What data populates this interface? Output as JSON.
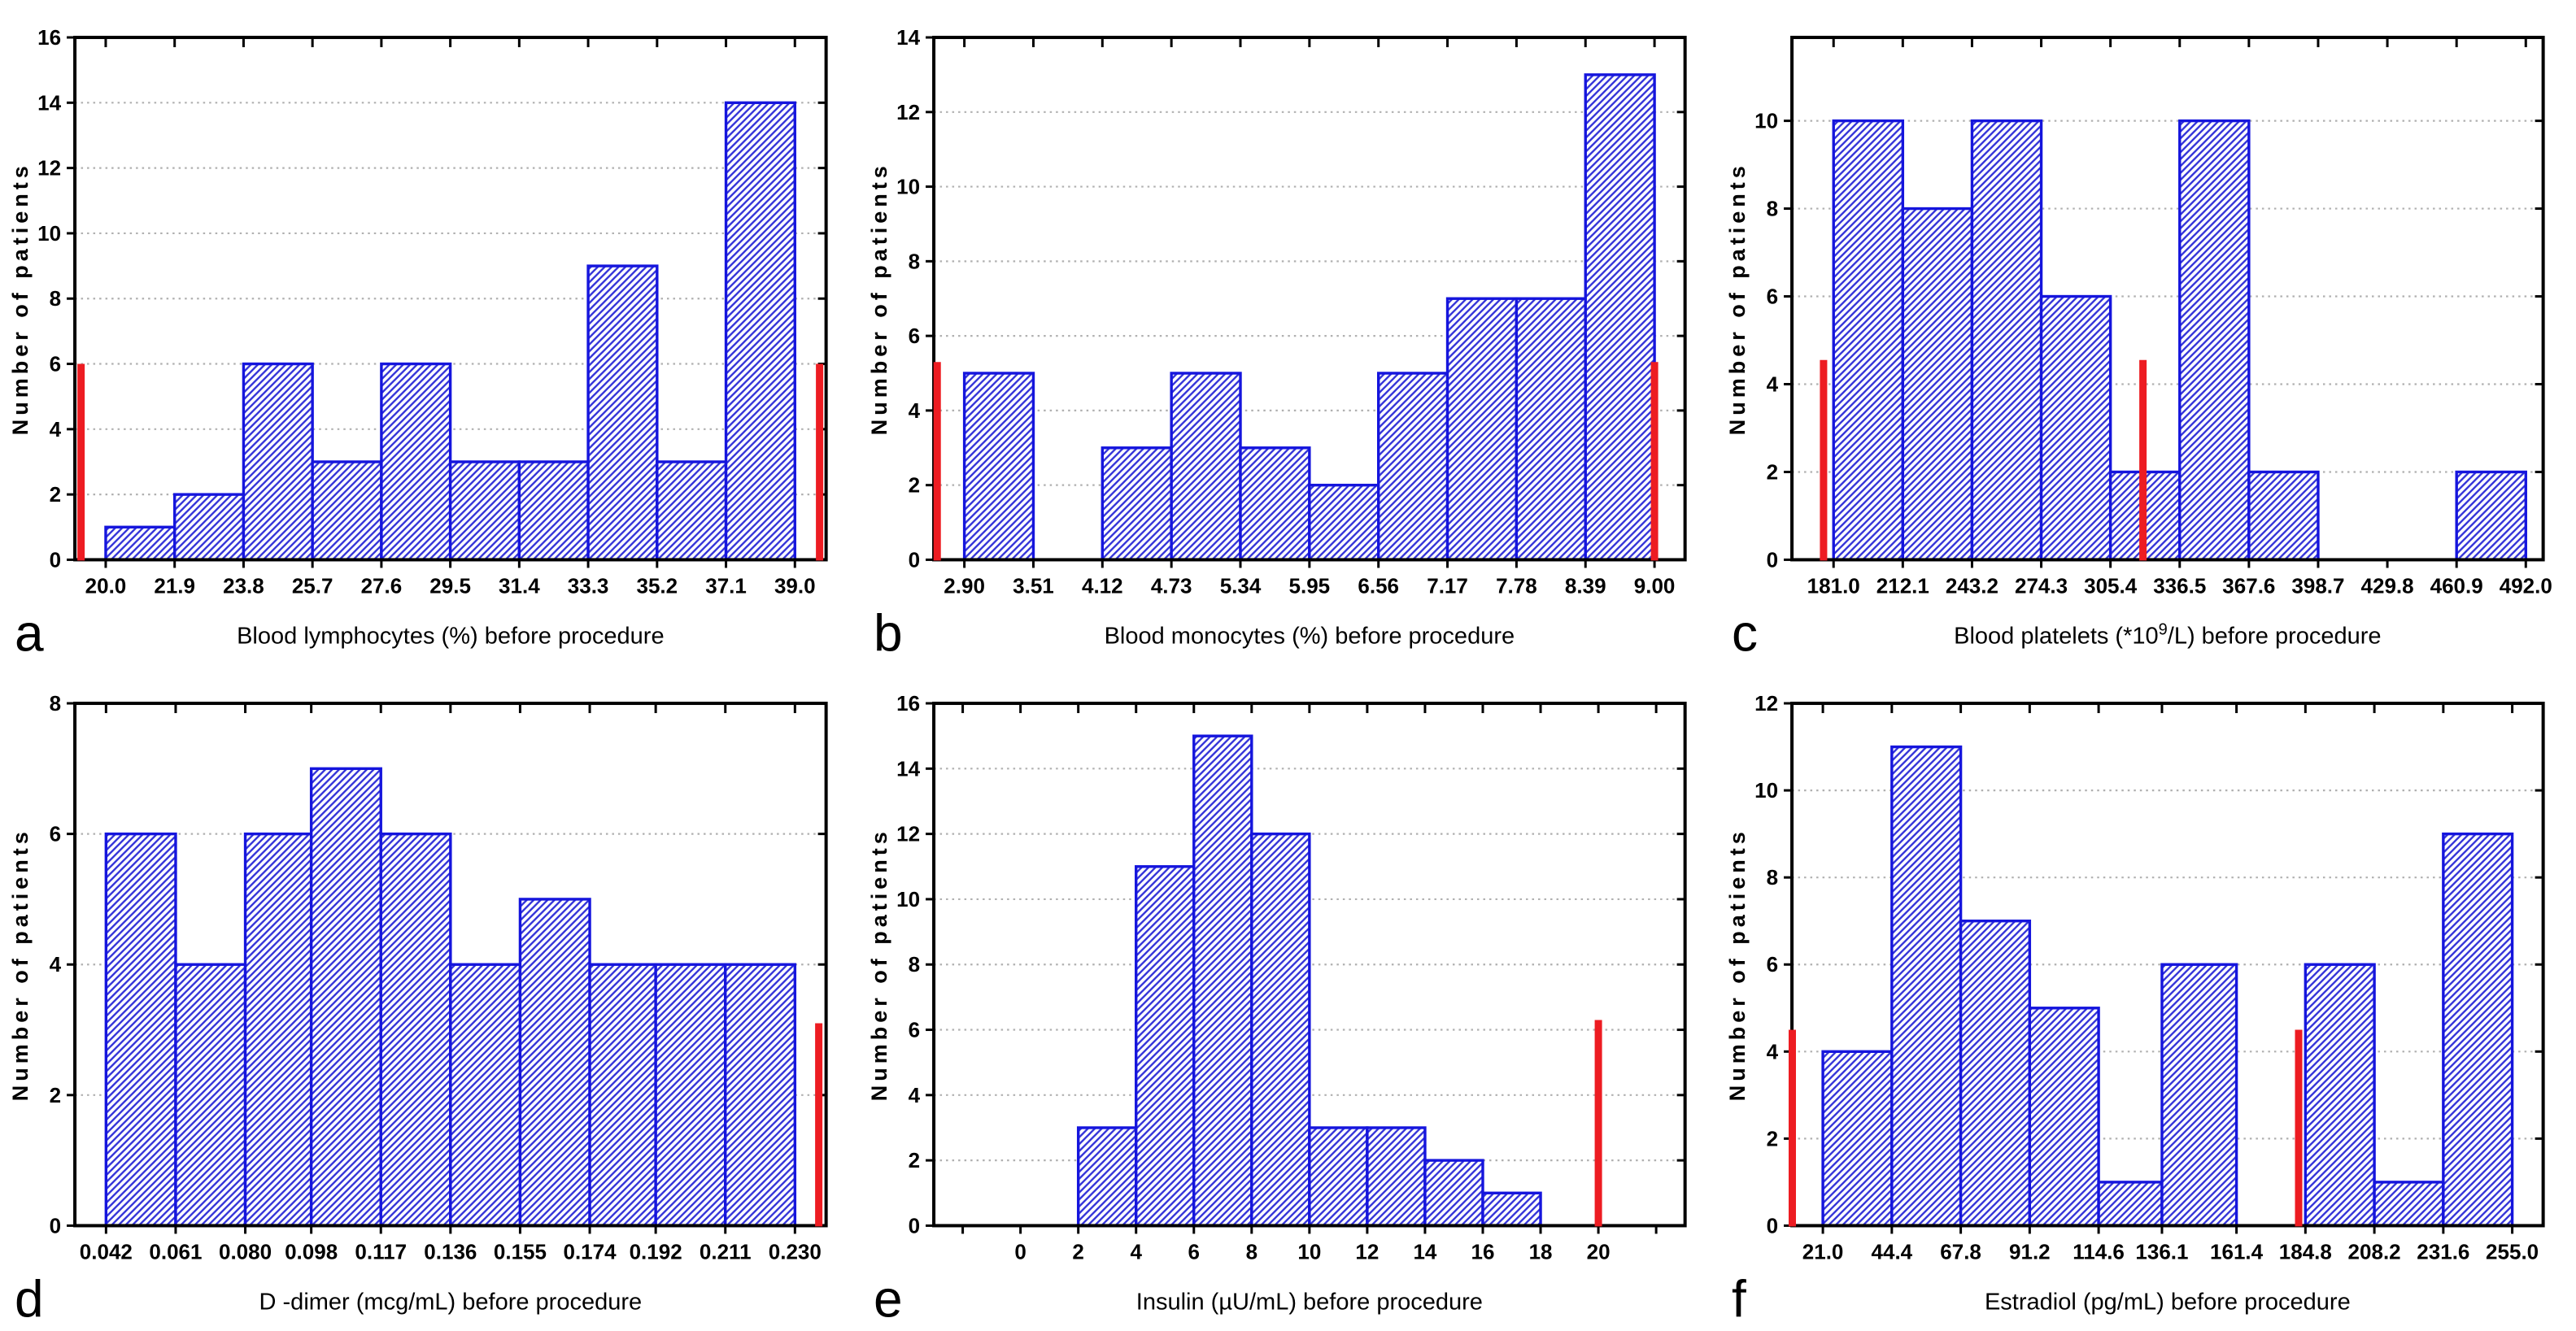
{
  "figure": {
    "ylabel": "Number of patients",
    "colors": {
      "bar_border": "#1515dd",
      "bar_hatch": "#3232d8",
      "refline": "#ed1c22",
      "frame": "#000000",
      "grid": "#b0b0b0",
      "text": "#000000",
      "background": "#ffffff"
    }
  },
  "chart_data": [
    {
      "type": "bar",
      "panel_label": "a",
      "title_pre": "Blood lymphocytes (%) before procedure",
      "title_sup": "",
      "title_post": "",
      "ylabel": "Number of patients",
      "xmin": 19.15,
      "xmax": 39.86,
      "ymax": 16,
      "yticks": [
        0,
        2,
        4,
        6,
        8,
        10,
        12,
        14,
        16
      ],
      "xticks": [
        20.0,
        21.9,
        23.8,
        25.7,
        27.6,
        29.5,
        31.4,
        33.3,
        35.2,
        37.1,
        39.0
      ],
      "xtick_labels": [
        "20.0",
        "21.9",
        "23.8",
        "25.7",
        "27.6",
        "29.5",
        "31.4",
        "33.3",
        "35.2",
        "37.1",
        "39.0"
      ],
      "bins": [
        [
          20.0,
          21.9,
          1
        ],
        [
          21.9,
          23.8,
          2
        ],
        [
          23.8,
          25.7,
          6
        ],
        [
          25.7,
          27.6,
          3
        ],
        [
          27.6,
          29.5,
          6
        ],
        [
          29.5,
          31.4,
          3
        ],
        [
          31.4,
          33.3,
          3
        ],
        [
          33.3,
          35.2,
          9
        ],
        [
          35.2,
          37.1,
          3
        ],
        [
          37.1,
          39.0,
          14
        ]
      ],
      "reflines": [
        {
          "x": 19.32,
          "h": 6
        },
        {
          "x": 39.68,
          "h": 6
        }
      ]
    },
    {
      "type": "bar",
      "panel_label": "b",
      "title_pre": "Blood monocytes (%) before procedure",
      "title_sup": "",
      "title_post": "",
      "ylabel": "Number of patients",
      "xmin": 2.63,
      "xmax": 9.27,
      "ymax": 14,
      "yticks": [
        0,
        2,
        4,
        6,
        8,
        10,
        12,
        14
      ],
      "xticks": [
        2.9,
        3.51,
        4.12,
        4.73,
        5.34,
        5.95,
        6.56,
        7.17,
        7.78,
        8.39,
        9.0
      ],
      "xtick_labels": [
        "2.90",
        "3.51",
        "4.12",
        "4.73",
        "5.34",
        "5.95",
        "6.56",
        "7.17",
        "7.78",
        "8.39",
        "9.00"
      ],
      "bins": [
        [
          2.9,
          3.51,
          5
        ],
        [
          3.51,
          4.12,
          0
        ],
        [
          4.12,
          4.73,
          3
        ],
        [
          4.73,
          5.34,
          5
        ],
        [
          5.34,
          5.95,
          3
        ],
        [
          5.95,
          6.56,
          2
        ],
        [
          6.56,
          7.17,
          5
        ],
        [
          7.17,
          7.78,
          7
        ],
        [
          7.78,
          8.39,
          7
        ],
        [
          8.39,
          9.0,
          13
        ]
      ],
      "reflines": [
        {
          "x": 2.66,
          "h": 5.3
        },
        {
          "x": 9.0,
          "h": 5.3
        }
      ]
    },
    {
      "type": "bar",
      "panel_label": "c",
      "title_pre": "Blood platelets (*10",
      "title_sup": "9",
      "title_post": "/L) before procedure",
      "ylabel": "Number of patients",
      "xmin": 162.3,
      "xmax": 499.8,
      "ymax": 11.9,
      "yticks": [
        0,
        2,
        4,
        6,
        8,
        10
      ],
      "xticks": [
        181.0,
        212.1,
        243.2,
        274.3,
        305.4,
        336.5,
        367.6,
        398.7,
        429.8,
        460.9,
        492.0
      ],
      "xtick_labels": [
        "181.0",
        "212.1",
        "243.2",
        "274.3",
        "305.4",
        "336.5",
        "367.6",
        "398.7",
        "429.8",
        "460.9",
        "492.0"
      ],
      "bins": [
        [
          181.0,
          212.1,
          10
        ],
        [
          212.1,
          243.2,
          8
        ],
        [
          243.2,
          274.3,
          10
        ],
        [
          274.3,
          305.4,
          6
        ],
        [
          305.4,
          336.5,
          2
        ],
        [
          336.5,
          367.6,
          10
        ],
        [
          367.6,
          398.7,
          2
        ],
        [
          398.7,
          429.8,
          0
        ],
        [
          429.8,
          460.9,
          0
        ],
        [
          460.9,
          492.0,
          2
        ]
      ],
      "reflines": [
        {
          "x": 176.5,
          "h": 4.55
        },
        {
          "x": 320,
          "h": 4.55
        }
      ]
    },
    {
      "type": "bar",
      "panel_label": "d",
      "title_pre": "D -dimer (mcg/mL) before procedure",
      "title_sup": "",
      "title_post": "",
      "ylabel": "Number of patients",
      "xmin": 0.0335,
      "xmax": 0.2385,
      "ymax": 8,
      "yticks": [
        0,
        2,
        4,
        6,
        8
      ],
      "xticks": [
        0.042,
        0.061,
        0.08,
        0.098,
        0.117,
        0.136,
        0.155,
        0.174,
        0.192,
        0.211,
        0.23
      ],
      "xtick_labels": [
        "0.042",
        "0.061",
        "0.080",
        "0.098",
        "0.117",
        "0.136",
        "0.155",
        "0.174",
        "0.192",
        "0.211",
        "0.230"
      ],
      "bins": [
        [
          0.042,
          0.061,
          6
        ],
        [
          0.061,
          0.08,
          4
        ],
        [
          0.08,
          0.098,
          6
        ],
        [
          0.098,
          0.117,
          7
        ],
        [
          0.117,
          0.136,
          6
        ],
        [
          0.136,
          0.155,
          4
        ],
        [
          0.155,
          0.174,
          5
        ],
        [
          0.174,
          0.192,
          4
        ],
        [
          0.192,
          0.211,
          4
        ],
        [
          0.211,
          0.23,
          4
        ]
      ],
      "reflines": [
        {
          "x": 0.2365,
          "h": 3.1
        }
      ]
    },
    {
      "type": "bar",
      "panel_label": "e",
      "title_pre": "Insulin (µU/mL) before procedure",
      "title_sup": "",
      "title_post": "",
      "ylabel": "Number of patients",
      "xmin": -3,
      "xmax": 23,
      "ymax": 16,
      "yticks": [
        0,
        2,
        4,
        6,
        8,
        10,
        12,
        14,
        16
      ],
      "xticks": [
        -2,
        0,
        2,
        4,
        6,
        8,
        10,
        12,
        14,
        16,
        18,
        20,
        22
      ],
      "xtick_labels": [
        "",
        "0",
        "2",
        "4",
        "6",
        "8",
        "10",
        "12",
        "14",
        "16",
        "18",
        "20",
        ""
      ],
      "bins": [
        [
          2,
          4,
          3
        ],
        [
          4,
          6,
          11
        ],
        [
          6,
          8,
          15
        ],
        [
          8,
          10,
          12
        ],
        [
          10,
          12,
          3
        ],
        [
          12,
          14,
          3
        ],
        [
          14,
          16,
          2
        ],
        [
          16,
          18,
          1
        ]
      ],
      "reflines": [
        {
          "x": 20,
          "h": 6.3
        }
      ]
    },
    {
      "type": "bar",
      "panel_label": "f",
      "title_pre": "Estradiol (pg/mL) before procedure",
      "title_sup": "",
      "title_post": "",
      "ylabel": "Number of patients",
      "xmin": 10.5,
      "xmax": 265.5,
      "ymax": 12,
      "yticks": [
        0,
        2,
        4,
        6,
        8,
        10,
        12
      ],
      "xticks": [
        21.0,
        44.4,
        67.8,
        91.2,
        114.6,
        136.1,
        161.4,
        184.8,
        208.2,
        231.6,
        255.0
      ],
      "xtick_labels": [
        "21.0",
        "44.4",
        "67.8",
        "91.2",
        "114.6",
        "136.1",
        "161.4",
        "184.8",
        "208.2",
        "231.6",
        "255.0"
      ],
      "bins": [
        [
          21.0,
          44.4,
          4
        ],
        [
          44.4,
          67.8,
          11
        ],
        [
          67.8,
          91.2,
          7
        ],
        [
          91.2,
          114.6,
          5
        ],
        [
          114.6,
          136.1,
          1
        ],
        [
          136.1,
          161.4,
          6
        ],
        [
          161.4,
          184.8,
          0
        ],
        [
          184.8,
          208.2,
          6
        ],
        [
          208.2,
          231.6,
          1
        ],
        [
          231.6,
          255.0,
          9
        ]
      ],
      "reflines": [
        {
          "x": 10.62,
          "h": 4.5
        },
        {
          "x": 182.5,
          "h": 4.5
        }
      ]
    }
  ]
}
